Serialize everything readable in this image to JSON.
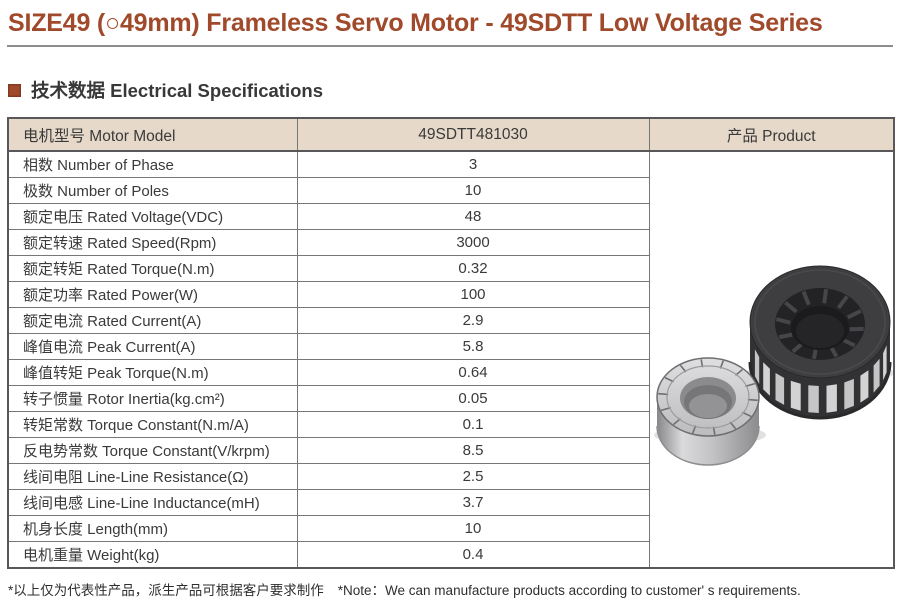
{
  "page": {
    "title": "SIZE49 (○49mm) Frameless Servo Motor - 49SDTT Low Voltage Series",
    "section_heading": "技术数据 Electrical Specifications"
  },
  "colors": {
    "accent": "#a0492b",
    "table_header_bg": "#e7d9c9",
    "table_border": "#77777a",
    "rule_gray": "#8d8d8d",
    "text": "#3a3a3a"
  },
  "table": {
    "headers": [
      "电机型号 Motor Model",
      "49SDTT481030",
      "产品 Product"
    ],
    "rows": [
      {
        "label": "相数 Number of Phase",
        "value": "3"
      },
      {
        "label": "极数 Number of Poles",
        "value": "10"
      },
      {
        "label": "额定电压 Rated Voltage(VDC)",
        "value": "48"
      },
      {
        "label": "额定转速 Rated Speed(Rpm)",
        "value": "3000"
      },
      {
        "label": "额定转矩 Rated Torque(N.m)",
        "value": "0.32"
      },
      {
        "label": "额定功率 Rated Power(W)",
        "value": "100"
      },
      {
        "label": "额定电流 Rated Current(A)",
        "value": "2.9"
      },
      {
        "label": "峰值电流 Peak Current(A)",
        "value": "5.8"
      },
      {
        "label": "峰值转矩 Peak Torque(N.m)",
        "value": "0.64"
      },
      {
        "label": "转子惯量 Rotor Inertia(kg.cm²)",
        "value": "0.05"
      },
      {
        "label": "转矩常数 Torque Constant(N.m/A)",
        "value": "0.1"
      },
      {
        "label": "反电势常数 Torque Constant(V/krpm)",
        "value": "8.5"
      },
      {
        "label": "线间电阻 Line-Line Resistance(Ω)",
        "value": "2.5"
      },
      {
        "label": "线间电感 Line-Line Inductance(mH)",
        "value": "3.7"
      },
      {
        "label": "机身长度 Length(mm)",
        "value": "10"
      },
      {
        "label": "电机重量 Weight(kg)",
        "value": "0.4"
      }
    ],
    "product_image": "frameless-motor-stator-and-rotor-photo"
  },
  "footer": {
    "note_cn": "*以上仅为代表性产品，派生产品可根据客户要求制作",
    "note_en": "*Note：We can manufacture products according to customer' s requirements."
  }
}
